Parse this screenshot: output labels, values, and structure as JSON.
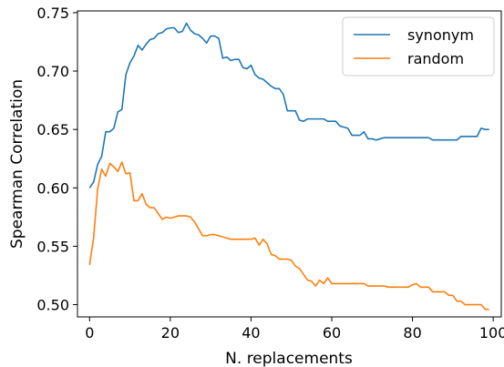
{
  "chart_data": {
    "type": "line",
    "xlabel": "N. replacements",
    "ylabel": "Spearman Correlation",
    "xlim": [
      -3,
      102
    ],
    "ylim": [
      0.4895,
      0.7515
    ],
    "xticks": [
      0,
      20,
      40,
      60,
      80,
      100
    ],
    "yticks": [
      0.5,
      0.55,
      0.6,
      0.65,
      0.7,
      0.75
    ],
    "xtick_labels": [
      "0",
      "20",
      "40",
      "60",
      "80",
      "100"
    ],
    "ytick_labels": [
      "0.50",
      "0.55",
      "0.60",
      "0.65",
      "0.70",
      "0.75"
    ],
    "legend_position": "top-right",
    "grid": false,
    "series": [
      {
        "name": "synonym",
        "color": "#1f77b4",
        "x": [
          0,
          1,
          2,
          3,
          4,
          5,
          6,
          7,
          8,
          9,
          10,
          11,
          12,
          13,
          14,
          15,
          16,
          17,
          18,
          19,
          20,
          21,
          22,
          23,
          24,
          25,
          26,
          27,
          28,
          29,
          30,
          31,
          32,
          33,
          34,
          35,
          36,
          37,
          38,
          39,
          40,
          41,
          42,
          43,
          44,
          45,
          46,
          47,
          48,
          49,
          50,
          51,
          52,
          53,
          54,
          55,
          56,
          57,
          58,
          59,
          60,
          61,
          62,
          63,
          64,
          65,
          66,
          67,
          68,
          69,
          70,
          71,
          72,
          73,
          74,
          75,
          76,
          77,
          78,
          79,
          80,
          81,
          82,
          83,
          84,
          85,
          86,
          87,
          88,
          89,
          90,
          91,
          92,
          93,
          94,
          95,
          96,
          97,
          98,
          99
        ],
        "values": [
          0.6,
          0.605,
          0.62,
          0.627,
          0.648,
          0.648,
          0.651,
          0.665,
          0.667,
          0.697,
          0.707,
          0.713,
          0.722,
          0.718,
          0.723,
          0.727,
          0.728,
          0.732,
          0.733,
          0.736,
          0.737,
          0.737,
          0.733,
          0.734,
          0.741,
          0.735,
          0.732,
          0.731,
          0.728,
          0.724,
          0.73,
          0.73,
          0.728,
          0.711,
          0.712,
          0.709,
          0.71,
          0.71,
          0.703,
          0.702,
          0.705,
          0.697,
          0.694,
          0.693,
          0.69,
          0.687,
          0.685,
          0.685,
          0.68,
          0.666,
          0.666,
          0.666,
          0.658,
          0.657,
          0.659,
          0.659,
          0.659,
          0.659,
          0.659,
          0.657,
          0.657,
          0.657,
          0.653,
          0.652,
          0.651,
          0.645,
          0.645,
          0.645,
          0.648,
          0.642,
          0.642,
          0.641,
          0.642,
          0.643,
          0.643,
          0.643,
          0.643,
          0.643,
          0.643,
          0.643,
          0.643,
          0.643,
          0.643,
          0.643,
          0.643,
          0.641,
          0.641,
          0.641,
          0.641,
          0.641,
          0.641,
          0.641,
          0.644,
          0.644,
          0.644,
          0.644,
          0.644,
          0.651,
          0.65,
          0.65
        ]
      },
      {
        "name": "random",
        "color": "#ff7f0e",
        "x": [
          0,
          1,
          2,
          3,
          4,
          5,
          6,
          7,
          8,
          9,
          10,
          11,
          12,
          13,
          14,
          15,
          16,
          17,
          18,
          19,
          20,
          21,
          22,
          23,
          24,
          25,
          26,
          27,
          28,
          29,
          30,
          31,
          32,
          33,
          34,
          35,
          36,
          37,
          38,
          39,
          40,
          41,
          42,
          43,
          44,
          45,
          46,
          47,
          48,
          49,
          50,
          51,
          52,
          53,
          54,
          55,
          56,
          57,
          58,
          59,
          60,
          61,
          62,
          63,
          64,
          65,
          66,
          67,
          68,
          69,
          70,
          71,
          72,
          73,
          74,
          75,
          76,
          77,
          78,
          79,
          80,
          81,
          82,
          83,
          84,
          85,
          86,
          87,
          88,
          89,
          90,
          91,
          92,
          93,
          94,
          95,
          96,
          97,
          98,
          99
        ],
        "values": [
          0.534,
          0.557,
          0.599,
          0.616,
          0.61,
          0.621,
          0.618,
          0.614,
          0.622,
          0.612,
          0.613,
          0.589,
          0.589,
          0.595,
          0.586,
          0.583,
          0.583,
          0.578,
          0.573,
          0.575,
          0.574,
          0.575,
          0.576,
          0.576,
          0.576,
          0.575,
          0.571,
          0.565,
          0.559,
          0.559,
          0.56,
          0.56,
          0.559,
          0.558,
          0.557,
          0.556,
          0.556,
          0.556,
          0.556,
          0.556,
          0.556,
          0.557,
          0.551,
          0.556,
          0.552,
          0.543,
          0.542,
          0.539,
          0.539,
          0.539,
          0.538,
          0.533,
          0.531,
          0.526,
          0.521,
          0.52,
          0.516,
          0.521,
          0.518,
          0.523,
          0.518,
          0.518,
          0.518,
          0.518,
          0.518,
          0.518,
          0.518,
          0.518,
          0.518,
          0.516,
          0.516,
          0.516,
          0.516,
          0.516,
          0.515,
          0.515,
          0.515,
          0.515,
          0.515,
          0.515,
          0.517,
          0.518,
          0.515,
          0.515,
          0.515,
          0.511,
          0.511,
          0.511,
          0.511,
          0.508,
          0.508,
          0.503,
          0.503,
          0.5,
          0.5,
          0.5,
          0.5,
          0.5,
          0.496,
          0.496
        ]
      }
    ]
  }
}
